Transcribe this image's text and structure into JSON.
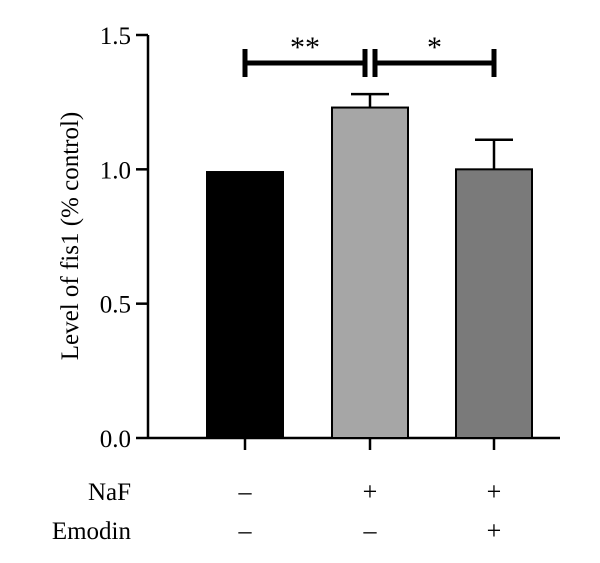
{
  "chart_data": {
    "type": "bar",
    "ylabel": "Level of fis1 (% control)",
    "ylim": [
      0,
      1.5
    ],
    "yticks": [
      {
        "value": 0.0,
        "label": "0.0"
      },
      {
        "value": 0.5,
        "label": "0.5"
      },
      {
        "value": 1.0,
        "label": "1.0"
      },
      {
        "value": 1.5,
        "label": "1.5"
      }
    ],
    "bars": [
      {
        "value": 0.99,
        "error": 0.0,
        "color": "#000000"
      },
      {
        "value": 1.23,
        "error": 0.05,
        "color": "#a6a6a6"
      },
      {
        "value": 1.0,
        "error": 0.11,
        "color": "#7a7a7a"
      }
    ],
    "conditions": [
      {
        "label": "NaF",
        "values": [
          "–",
          "+",
          "+"
        ]
      },
      {
        "label": "Emodin",
        "values": [
          "–",
          "–",
          "+"
        ]
      }
    ],
    "significance": [
      {
        "from": 0,
        "to": 1,
        "label": "**"
      },
      {
        "from": 1,
        "to": 2,
        "label": "*"
      }
    ]
  }
}
